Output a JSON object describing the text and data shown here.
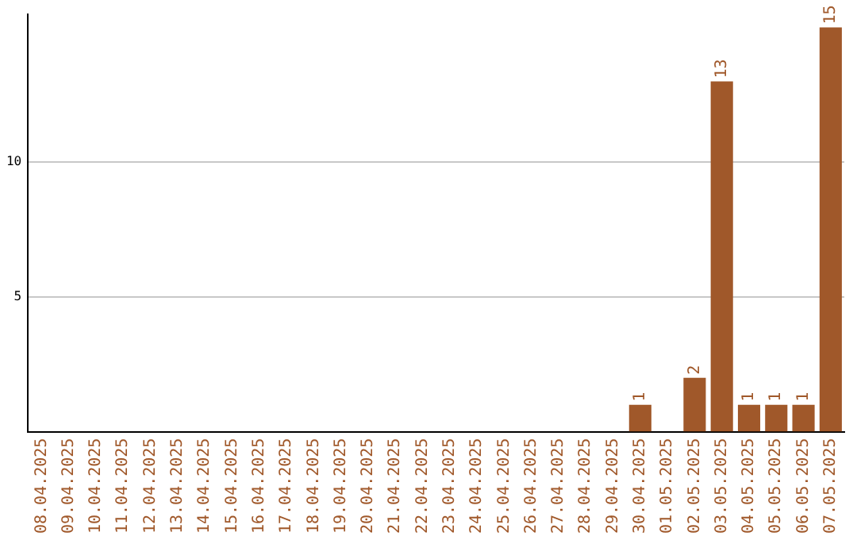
{
  "chart_data": {
    "type": "bar",
    "categories": [
      "08.04.2025",
      "09.04.2025",
      "10.04.2025",
      "11.04.2025",
      "12.04.2025",
      "13.04.2025",
      "14.04.2025",
      "15.04.2025",
      "16.04.2025",
      "17.04.2025",
      "18.04.2025",
      "19.04.2025",
      "20.04.2025",
      "21.04.2025",
      "22.04.2025",
      "23.04.2025",
      "24.04.2025",
      "25.04.2025",
      "26.04.2025",
      "27.04.2025",
      "28.04.2025",
      "29.04.2025",
      "30.04.2025",
      "01.05.2025",
      "02.05.2025",
      "03.05.2025",
      "04.05.2025",
      "05.05.2025",
      "06.05.2025",
      "07.05.2025"
    ],
    "values": [
      0,
      0,
      0,
      0,
      0,
      0,
      0,
      0,
      0,
      0,
      0,
      0,
      0,
      0,
      0,
      0,
      0,
      0,
      0,
      0,
      0,
      0,
      1,
      0,
      2,
      13,
      1,
      1,
      1,
      15
    ],
    "value_labels": [
      null,
      null,
      null,
      null,
      null,
      null,
      null,
      null,
      null,
      null,
      null,
      null,
      null,
      null,
      null,
      null,
      null,
      null,
      null,
      null,
      null,
      null,
      "1",
      null,
      "2",
      "13",
      "1",
      "1",
      "1",
      "15"
    ],
    "color": "#a0582a",
    "ylim": [
      0,
      15.5
    ],
    "yticks": [
      5,
      10
    ],
    "grid": "y"
  }
}
